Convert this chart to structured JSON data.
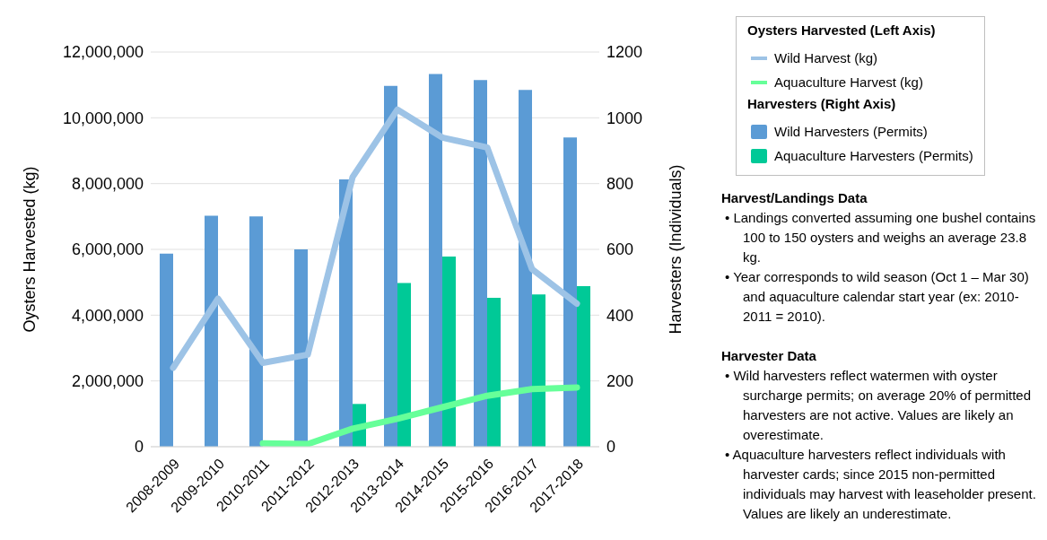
{
  "chart_data": {
    "type": "bar",
    "categories": [
      "2008-2009",
      "2009-2010",
      "2010-2011",
      "2011-2012",
      "2012-2013",
      "2013-2014",
      "2014-2015",
      "2015-2016",
      "2016-2017",
      "2017-2018"
    ],
    "series": [
      {
        "name": "Wild Harvest (kg)",
        "type": "line",
        "color": "#9dc3e6",
        "values": [
          2400000,
          4500000,
          2550000,
          2800000,
          8200000,
          10250000,
          9400000,
          9100000,
          5400000,
          4350000
        ]
      },
      {
        "name": "Aquaculture Harvest (kg)",
        "type": "line",
        "color": "#66ff99",
        "values": [
          null,
          null,
          100000,
          80000,
          550000,
          850000,
          1200000,
          1550000,
          1750000,
          1800000
        ]
      },
      {
        "name": "Wild Harvesters (Permits)",
        "axis": "y2",
        "color": "#5b9bd5",
        "values": [
          587,
          702,
          700,
          600,
          813,
          1097,
          1133,
          1115,
          1085,
          940
        ]
      },
      {
        "name": "Aquaculture Harvesters (Permits)",
        "axis": "y2",
        "color": "#00c997",
        "values": [
          null,
          null,
          null,
          null,
          130,
          498,
          578,
          453,
          463,
          488
        ]
      }
    ],
    "ylabel": "Oysters Harvested (kg)",
    "y2label": "Harvesters (Individuals)",
    "ylim": [
      0,
      12000000
    ],
    "yticks": [
      0,
      {
        "value": 2000000,
        "label": "2,000,000"
      },
      {
        "value": 4000000,
        "label": "4,000,000"
      },
      {
        "value": 6000000,
        "label": "6,000,000"
      },
      {
        "value": 8000000,
        "label": "8,000,000"
      },
      {
        "value": 10000000,
        "label": "10,000,000"
      },
      {
        "value": 12000000,
        "label": "12,000,000"
      }
    ],
    "y2lim": [
      0,
      1200
    ],
    "y2ticks": [
      0,
      200,
      400,
      600,
      800,
      1000,
      1200
    ],
    "grid": "y",
    "legend": "right",
    "marker": "none",
    "line_style": "solid",
    "annotations": [
      "Oysters Harvested (Left Axis)",
      "Harvesters (Right Axis)",
      "Harvest/Landings Data",
      "• Landings converted assuming one bushel contains 100 to 150 oysters and weighs an average 23.8 kg.",
      "• Year corresponds to wild season (Oct 1 – Mar 30) and aquaculture calendar start year (ex: 2010-2011 = 2010).",
      "Harvester Data",
      "• Wild harvesters reflect watermen with oyster surcharge permits; on average 20% of permitted harvesters are not active. Values are likely an overestimate.",
      "• Aquaculture harvesters reflect individuals with harvester cards; since 2015 non-permitted individuals may harvest with leaseholder present. Values are likely an underestimate."
    ]
  }
}
